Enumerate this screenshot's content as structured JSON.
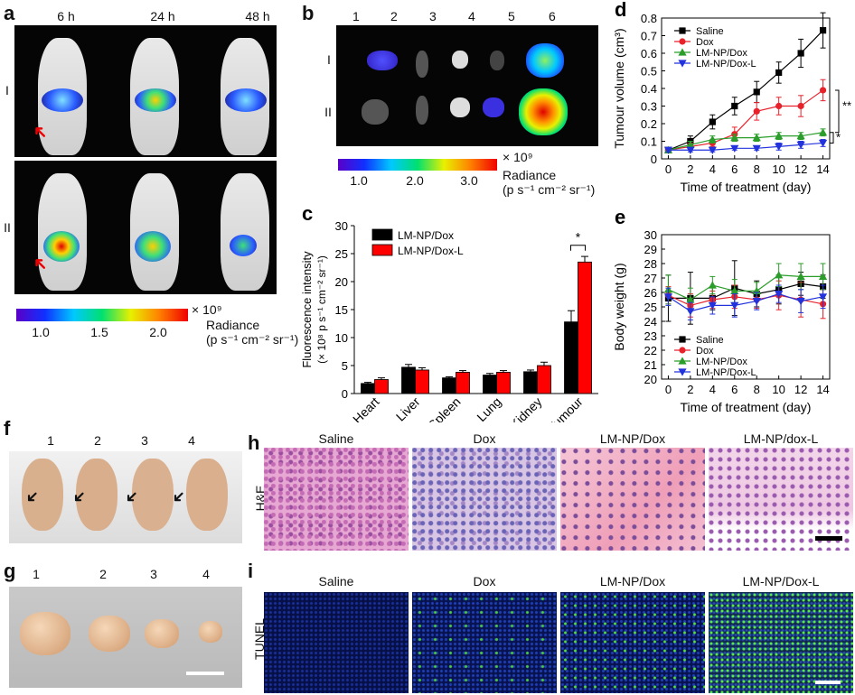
{
  "panels": {
    "a": {
      "label": "a",
      "times": [
        "6 h",
        "24 h",
        "48 h"
      ],
      "rows": [
        "I",
        "II"
      ],
      "colorbar": {
        "multiplier": "× 10⁹",
        "ticks": [
          "1.0",
          "1.5",
          "2.0"
        ],
        "title": "Radiance",
        "units": "(p s⁻¹ cm⁻² sr⁻¹)"
      }
    },
    "b": {
      "label": "b",
      "columns": [
        "1",
        "2",
        "3",
        "4",
        "5",
        "6"
      ],
      "rows": [
        "I",
        "II"
      ],
      "colorbar": {
        "multiplier": "× 10⁹",
        "ticks": [
          "1.0",
          "2.0",
          "3.0"
        ],
        "title": "Radiance",
        "units": "(p s⁻¹ cm⁻² sr⁻¹)"
      }
    },
    "f": {
      "label": "f",
      "numbers": [
        "1",
        "2",
        "3",
        "4"
      ]
    },
    "g": {
      "label": "g",
      "numbers": [
        "1",
        "2",
        "3",
        "4"
      ]
    },
    "h": {
      "label": "h",
      "row_label": "H&E",
      "columns": [
        "Saline",
        "Dox",
        "LM-NP/Dox",
        "LM-NP/dox-L"
      ]
    },
    "i": {
      "label": "i",
      "row_label": "TUNEL",
      "columns": [
        "Saline",
        "Dox",
        "LM-NP/Dox",
        "LM-NP/Dox-L"
      ]
    }
  },
  "chart_data": [
    {
      "id": "c",
      "type": "bar",
      "title": "",
      "panel_label": "c",
      "ylabel": "Fluorescence intensity",
      "ylabel2": "(× 10⁸ p s⁻¹ cm⁻² sr⁻¹)",
      "categories": [
        "Heart",
        "Liver",
        "Spleen",
        "Lung",
        "Kidney",
        "Tumour"
      ],
      "ylim": [
        0,
        30
      ],
      "yticks": [
        0,
        5,
        10,
        15,
        20,
        25,
        30
      ],
      "series": [
        {
          "name": "LM-NP/Dox",
          "color": "#000000",
          "values": [
            1.8,
            4.7,
            2.8,
            3.3,
            3.9,
            12.8
          ],
          "errors": [
            0.2,
            0.5,
            0.2,
            0.3,
            0.3,
            2.0
          ]
        },
        {
          "name": "LM-NP/Dox-L",
          "color": "#ff0000",
          "values": [
            2.5,
            4.2,
            3.8,
            3.8,
            5.0,
            23.5
          ],
          "errors": [
            0.3,
            0.4,
            0.3,
            0.3,
            0.6,
            1.0
          ]
        }
      ],
      "annotation": "*"
    },
    {
      "id": "d",
      "type": "line",
      "panel_label": "d",
      "ylabel": "Tumour volume (cm³)",
      "xlabel": "Time of treatment (day)",
      "x": [
        0,
        2,
        4,
        6,
        8,
        10,
        12,
        14
      ],
      "xticks": [
        0,
        2,
        4,
        6,
        8,
        10,
        12,
        14
      ],
      "ylim": [
        0,
        0.8
      ],
      "yticks": [
        0,
        0.1,
        0.2,
        0.3,
        0.4,
        0.5,
        0.6,
        0.7,
        0.8
      ],
      "series": [
        {
          "name": "Saline",
          "color": "#000000",
          "marker": "square",
          "values": [
            0.05,
            0.1,
            0.21,
            0.3,
            0.38,
            0.49,
            0.6,
            0.73
          ],
          "errors": [
            0.01,
            0.03,
            0.04,
            0.05,
            0.06,
            0.06,
            0.08,
            0.1
          ]
        },
        {
          "name": "Dox",
          "color": "#e8222b",
          "marker": "circle",
          "values": [
            0.05,
            0.07,
            0.09,
            0.14,
            0.27,
            0.3,
            0.3,
            0.39
          ],
          "errors": [
            0.01,
            0.02,
            0.02,
            0.04,
            0.05,
            0.05,
            0.06,
            0.06
          ]
        },
        {
          "name": "LM-NP/Dox",
          "color": "#2a9d2a",
          "marker": "triangle-up",
          "values": [
            0.05,
            0.08,
            0.11,
            0.12,
            0.12,
            0.13,
            0.13,
            0.15
          ],
          "errors": [
            0.01,
            0.02,
            0.02,
            0.02,
            0.02,
            0.02,
            0.02,
            0.02
          ]
        },
        {
          "name": "LM-NP/Dox-L",
          "color": "#2233dd",
          "marker": "triangle-down",
          "values": [
            0.05,
            0.05,
            0.05,
            0.06,
            0.06,
            0.07,
            0.08,
            0.09
          ],
          "errors": [
            0.01,
            0.01,
            0.01,
            0.01,
            0.01,
            0.02,
            0.02,
            0.02
          ]
        }
      ],
      "annotations": [
        "**",
        "*"
      ]
    },
    {
      "id": "e",
      "type": "line",
      "panel_label": "e",
      "ylabel": "Body weight (g)",
      "xlabel": "Time of treatment (day)",
      "x": [
        0,
        2,
        4,
        6,
        8,
        10,
        12,
        14
      ],
      "xticks": [
        0,
        2,
        4,
        6,
        8,
        10,
        12,
        14
      ],
      "ylim": [
        20,
        30
      ],
      "yticks": [
        20,
        21,
        22,
        23,
        24,
        25,
        26,
        27,
        28,
        29,
        30
      ],
      "series": [
        {
          "name": "Saline",
          "color": "#000000",
          "marker": "square",
          "values": [
            25.6,
            25.6,
            25.6,
            26.3,
            25.9,
            26.2,
            26.6,
            26.4
          ],
          "errors": [
            1.6,
            1.8,
            0.8,
            1.9,
            0.9,
            1.0,
            0.8,
            0.8
          ]
        },
        {
          "name": "Dox",
          "color": "#e8222b",
          "marker": "circle",
          "values": [
            25.8,
            25.1,
            25.5,
            25.7,
            25.5,
            25.8,
            25.5,
            25.2
          ],
          "errors": [
            0.6,
            0.8,
            0.6,
            0.8,
            0.6,
            1.0,
            1.2,
            1.0
          ]
        },
        {
          "name": "LM-NP/Dox",
          "color": "#2a9d2a",
          "marker": "triangle-up",
          "values": [
            26.2,
            25.5,
            26.5,
            26.1,
            26.1,
            27.2,
            27.1,
            27.1
          ],
          "errors": [
            1.0,
            0.8,
            0.6,
            0.8,
            0.6,
            0.8,
            0.9,
            0.9
          ]
        },
        {
          "name": "LM-NP/Dox-L",
          "color": "#2233dd",
          "marker": "triangle-down",
          "values": [
            25.7,
            24.7,
            25.1,
            25.1,
            25.4,
            25.9,
            25.4,
            25.7
          ],
          "errors": [
            0.6,
            0.6,
            0.6,
            0.8,
            0.6,
            0.6,
            0.8,
            0.8
          ]
        }
      ]
    }
  ]
}
